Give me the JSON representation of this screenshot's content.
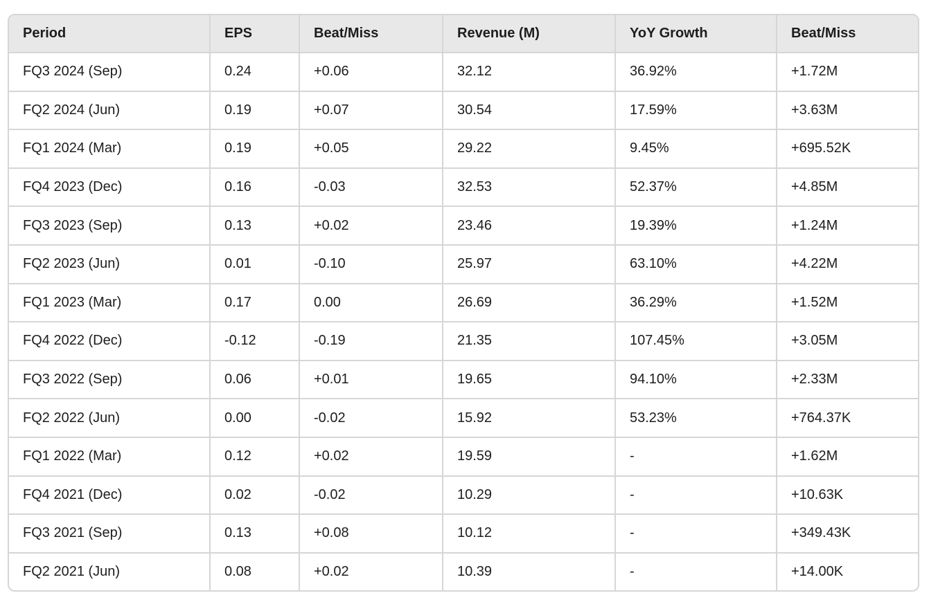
{
  "table": {
    "headers": [
      "Period",
      "EPS",
      "Beat/Miss",
      "Revenue (M)",
      "YoY Growth",
      "Beat/Miss"
    ],
    "rows": [
      [
        "FQ3 2024 (Sep)",
        "0.24",
        "+0.06",
        "32.12",
        "36.92%",
        "+1.72M"
      ],
      [
        "FQ2 2024 (Jun)",
        "0.19",
        "+0.07",
        "30.54",
        "17.59%",
        "+3.63M"
      ],
      [
        "FQ1 2024 (Mar)",
        "0.19",
        "+0.05",
        "29.22",
        "9.45%",
        "+695.52K"
      ],
      [
        "FQ4 2023 (Dec)",
        "0.16",
        "-0.03",
        "32.53",
        "52.37%",
        "+4.85M"
      ],
      [
        "FQ3 2023 (Sep)",
        "0.13",
        "+0.02",
        "23.46",
        "19.39%",
        "+1.24M"
      ],
      [
        "FQ2 2023 (Jun)",
        "0.01",
        "-0.10",
        "25.97",
        "63.10%",
        "+4.22M"
      ],
      [
        "FQ1 2023 (Mar)",
        "0.17",
        "0.00",
        "26.69",
        "36.29%",
        "+1.52M"
      ],
      [
        "FQ4 2022 (Dec)",
        "-0.12",
        "-0.19",
        "21.35",
        "107.45%",
        "+3.05M"
      ],
      [
        "FQ3 2022 (Sep)",
        "0.06",
        "+0.01",
        "19.65",
        "94.10%",
        "+2.33M"
      ],
      [
        "FQ2 2022 (Jun)",
        "0.00",
        "-0.02",
        "15.92",
        "53.23%",
        "+764.37K"
      ],
      [
        "FQ1 2022 (Mar)",
        "0.12",
        "+0.02",
        "19.59",
        "-",
        "+1.62M"
      ],
      [
        "FQ4 2021 (Dec)",
        "0.02",
        "-0.02",
        "10.29",
        "-",
        "+10.63K"
      ],
      [
        "FQ3 2021 (Sep)",
        "0.13",
        "+0.08",
        "10.12",
        "-",
        "+349.43K"
      ],
      [
        "FQ2 2021 (Jun)",
        "0.08",
        "+0.02",
        "10.39",
        "-",
        "+14.00K"
      ]
    ]
  }
}
